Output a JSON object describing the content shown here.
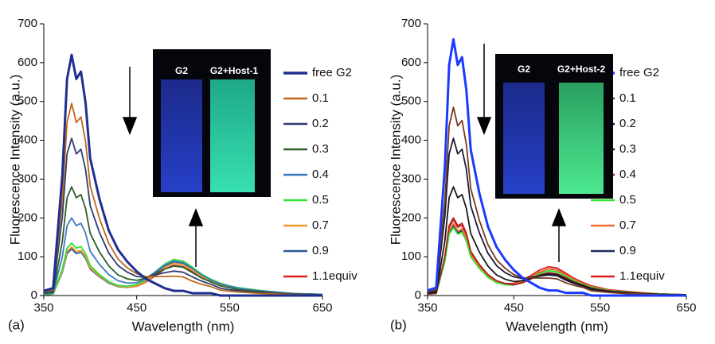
{
  "chart_data": [
    {
      "type": "line",
      "panel_label": "(a)",
      "x_label": "Wavelength (nm)",
      "y_label": "Fluorescence Intensity (a.u.)",
      "annotations": [
        "G2",
        "G2+Host-1"
      ],
      "xlim": [
        350,
        650
      ],
      "ylim": [
        0,
        700
      ],
      "xticks": [
        350,
        450,
        550,
        650
      ],
      "yticks": [
        0,
        100,
        200,
        300,
        400,
        500,
        600,
        700
      ],
      "x": [
        350,
        360,
        370,
        375,
        380,
        385,
        390,
        395,
        400,
        410,
        420,
        430,
        440,
        450,
        460,
        470,
        480,
        490,
        500,
        510,
        520,
        530,
        540,
        550,
        560,
        580,
        600,
        620,
        650
      ],
      "series": [
        {
          "name": "free G2",
          "color": "#1f2f8f",
          "values": [
            12,
            19,
            310,
            558,
            620,
            558,
            577,
            496,
            353,
            248,
            167,
            118,
            87,
            62,
            43,
            31,
            19,
            12,
            12,
            6,
            6,
            6,
            0,
            0,
            0,
            0,
            0,
            0,
            0
          ]
        },
        {
          "name": "0.1",
          "color": "#c0651b",
          "values": [
            10,
            15,
            248,
            446,
            495,
            446,
            460,
            396,
            282,
            198,
            134,
            94,
            71,
            56,
            49,
            49,
            49,
            50,
            48,
            37,
            29,
            23,
            14,
            11,
            9,
            6,
            4,
            2,
            1
          ]
        },
        {
          "name": "0.2",
          "color": "#2b3e6e",
          "values": [
            8,
            12,
            203,
            365,
            405,
            365,
            377,
            324,
            231,
            162,
            109,
            77,
            60,
            49,
            47,
            53,
            59,
            63,
            60,
            48,
            37,
            29,
            19,
            15,
            12,
            8,
            6,
            3,
            2
          ]
        },
        {
          "name": "0.3",
          "color": "#2e5e2a",
          "values": [
            6,
            8,
            140,
            252,
            280,
            252,
            260,
            224,
            160,
            112,
            76,
            53,
            43,
            39,
            45,
            56,
            68,
            76,
            73,
            59,
            45,
            35,
            25,
            20,
            15,
            11,
            7,
            4,
            2
          ]
        },
        {
          "name": "0.4",
          "color": "#3c7bc0",
          "values": [
            4,
            6,
            100,
            180,
            200,
            180,
            186,
            160,
            114,
            80,
            54,
            38,
            32,
            33,
            44,
            61,
            78,
            89,
            85,
            70,
            53,
            40,
            30,
            24,
            19,
            13,
            9,
            5,
            3
          ]
        },
        {
          "name": "0.5",
          "color": "#33e033",
          "values": [
            3,
            4,
            68,
            122,
            135,
            122,
            126,
            108,
            77,
            54,
            36,
            26,
            24,
            28,
            41,
            61,
            81,
            93,
            89,
            73,
            55,
            42,
            32,
            25,
            20,
            14,
            9,
            5,
            3
          ]
        },
        {
          "name": "0.7",
          "color": "#f39a2b",
          "values": [
            3,
            4,
            63,
            113,
            125,
            113,
            116,
            100,
            71,
            50,
            34,
            24,
            22,
            25,
            37,
            54,
            72,
            83,
            79,
            65,
            49,
            37,
            28,
            22,
            18,
            12,
            8,
            5,
            2
          ]
        },
        {
          "name": "0.9",
          "color": "#2a5a9a",
          "values": [
            2,
            4,
            60,
            108,
            120,
            108,
            112,
            96,
            68,
            48,
            32,
            23,
            21,
            25,
            38,
            57,
            76,
            87,
            83,
            69,
            52,
            39,
            30,
            24,
            19,
            13,
            9,
            5,
            3
          ]
        },
        {
          "name": "1.1equiv",
          "color": "#e02020",
          "values": [
            3,
            4,
            63,
            113,
            125,
            113,
            116,
            100,
            71,
            50,
            34,
            24,
            22,
            24,
            35,
            51,
            68,
            78,
            74,
            61,
            46,
            35,
            26,
            21,
            17,
            11,
            8,
            5,
            2
          ]
        }
      ]
    },
    {
      "type": "line",
      "panel_label": "(b)",
      "x_label": "Wavelength (nm)",
      "y_label": "Fluorescence Intensity (a.u.)",
      "annotations": [
        "G2",
        "G2+Host-2"
      ],
      "xlim": [
        350,
        650
      ],
      "ylim": [
        0,
        700
      ],
      "xticks": [
        350,
        450,
        550,
        650
      ],
      "yticks": [
        0,
        100,
        200,
        300,
        400,
        500,
        600,
        700
      ],
      "x": [
        350,
        360,
        370,
        375,
        380,
        385,
        390,
        395,
        400,
        410,
        420,
        430,
        440,
        450,
        460,
        470,
        480,
        490,
        500,
        510,
        520,
        530,
        540,
        550,
        560,
        580,
        600,
        620,
        650
      ],
      "series": [
        {
          "name": "free G2",
          "color": "#1a3aff",
          "values": [
            13,
            20,
            330,
            594,
            660,
            594,
            614,
            528,
            376,
            264,
            178,
            125,
            92,
            66,
            46,
            33,
            20,
            13,
            13,
            7,
            7,
            7,
            0,
            0,
            0,
            0,
            0,
            0,
            0
          ]
        },
        {
          "name": "0.1",
          "color": "#7a3a1a",
          "values": [
            10,
            15,
            243,
            437,
            485,
            437,
            451,
            388,
            276,
            194,
            131,
            92,
            70,
            54,
            46,
            45,
            45,
            45,
            43,
            33,
            26,
            21,
            12,
            10,
            8,
            5,
            4,
            2,
            1
          ]
        },
        {
          "name": "0.2",
          "color": "#1a1a3a",
          "values": [
            8,
            12,
            203,
            365,
            405,
            365,
            377,
            324,
            231,
            162,
            109,
            77,
            59,
            48,
            44,
            47,
            50,
            53,
            51,
            40,
            31,
            24,
            16,
            13,
            10,
            7,
            5,
            3,
            1
          ]
        },
        {
          "name": "0.3",
          "color": "#1a1a1a",
          "values": [
            6,
            8,
            140,
            252,
            280,
            252,
            260,
            224,
            160,
            112,
            76,
            53,
            42,
            36,
            38,
            44,
            51,
            56,
            54,
            43,
            33,
            26,
            18,
            14,
            11,
            8,
            5,
            3,
            2
          ]
        },
        {
          "name": "0.4",
          "color": "#b02020",
          "values": [
            4,
            6,
            100,
            180,
            200,
            180,
            186,
            160,
            114,
            80,
            54,
            38,
            31,
            28,
            33,
            43,
            53,
            59,
            56,
            46,
            35,
            27,
            19,
            15,
            12,
            8,
            6,
            3,
            2
          ]
        },
        {
          "name": "0.5",
          "color": "#33e033",
          "values": [
            4,
            5,
            88,
            158,
            175,
            158,
            163,
            140,
            100,
            70,
            47,
            33,
            28,
            27,
            33,
            45,
            56,
            64,
            61,
            50,
            38,
            29,
            21,
            17,
            13,
            9,
            6,
            4,
            2
          ]
        },
        {
          "name": "0.7",
          "color": "#f07030",
          "values": [
            4,
            6,
            93,
            167,
            185,
            167,
            172,
            148,
            105,
            74,
            50,
            35,
            29,
            29,
            36,
            48,
            61,
            69,
            66,
            54,
            41,
            31,
            23,
            18,
            14,
            10,
            7,
            4,
            2
          ]
        },
        {
          "name": "0.9",
          "color": "#1a2a5a",
          "values": [
            4,
            5,
            90,
            162,
            180,
            162,
            167,
            144,
            103,
            72,
            49,
            34,
            28,
            28,
            36,
            48,
            60,
            69,
            66,
            54,
            41,
            31,
            23,
            18,
            14,
            10,
            7,
            4,
            2
          ]
        },
        {
          "name": "1.1equiv",
          "color": "#e02020",
          "values": [
            4,
            6,
            98,
            176,
            195,
            176,
            181,
            156,
            111,
            78,
            53,
            37,
            31,
            31,
            39,
            52,
            66,
            74,
            71,
            58,
            44,
            34,
            25,
            20,
            15,
            11,
            7,
            4,
            2
          ]
        }
      ]
    }
  ]
}
